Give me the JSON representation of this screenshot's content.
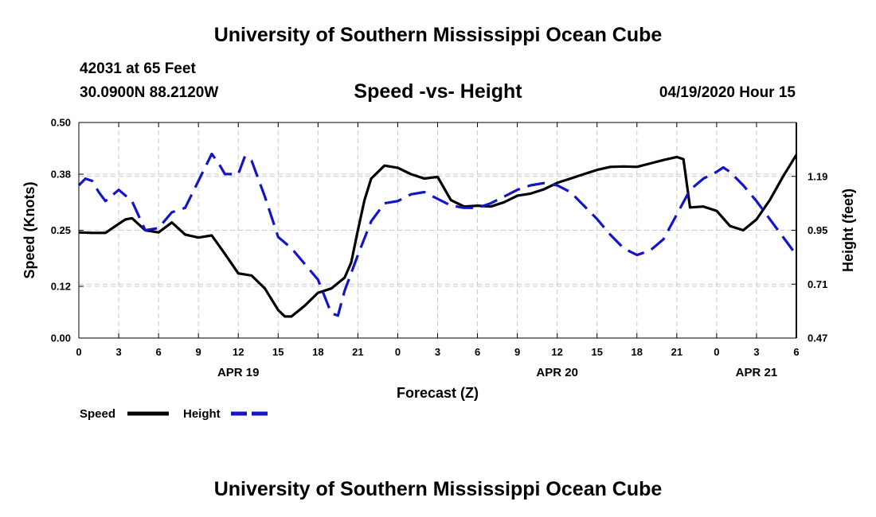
{
  "header": {
    "main_title": "University of Southern Mississippi Ocean Cube",
    "station": "42031 at 65 Feet",
    "coords": "30.0900N 88.2120W",
    "datetime": "04/19/2020 Hour 15"
  },
  "footer": {
    "title": "University of Southern Mississippi Ocean Cube"
  },
  "colors": {
    "speed": "#000000",
    "height": "#1414c8",
    "grid": "#c8c8c8"
  },
  "chart_data": {
    "type": "line",
    "title": "Speed -vs- Height",
    "xlabel": "Forecast (Z)",
    "ylabel": "Speed (Knots)",
    "y2label": "Height (feet)",
    "grid": true,
    "x_range": [
      0,
      54
    ],
    "x_ticks": [
      {
        "x": 0,
        "label": "0"
      },
      {
        "x": 3,
        "label": "3"
      },
      {
        "x": 6,
        "label": "6"
      },
      {
        "x": 9,
        "label": "9"
      },
      {
        "x": 12,
        "label": "12"
      },
      {
        "x": 15,
        "label": "15"
      },
      {
        "x": 18,
        "label": "18"
      },
      {
        "x": 21,
        "label": "21"
      },
      {
        "x": 24,
        "label": "0"
      },
      {
        "x": 27,
        "label": "3"
      },
      {
        "x": 30,
        "label": "6"
      },
      {
        "x": 33,
        "label": "9"
      },
      {
        "x": 36,
        "label": "12"
      },
      {
        "x": 39,
        "label": "15"
      },
      {
        "x": 42,
        "label": "18"
      },
      {
        "x": 45,
        "label": "21"
      },
      {
        "x": 48,
        "label": "0"
      },
      {
        "x": 51,
        "label": "3"
      },
      {
        "x": 54,
        "label": "6"
      }
    ],
    "date_labels": [
      {
        "x": 12,
        "label": "APR 19"
      },
      {
        "x": 36,
        "label": "APR 20"
      },
      {
        "x": 51,
        "label": "APR 21"
      }
    ],
    "ylim": [
      0,
      0.5
    ],
    "y_ticks": [
      "0.00",
      "0.12",
      "0.25",
      "0.38",
      "0.50"
    ],
    "y2lim": [
      0.47,
      1.43
    ],
    "y2_ticks": [
      "0.47",
      "0.71",
      "0.95",
      "1.19"
    ],
    "legend": [
      {
        "name": "Speed",
        "style": "solid"
      },
      {
        "name": "Height",
        "style": "dashed"
      }
    ],
    "series": [
      {
        "name": "Speed",
        "axis": "left",
        "x": [
          0,
          1,
          2,
          3,
          3.5,
          4,
          5,
          6,
          7,
          8,
          9,
          10,
          11,
          12,
          13,
          14,
          15,
          15.5,
          16,
          17,
          18,
          19,
          20,
          20.5,
          21,
          21.5,
          22,
          23,
          24,
          25,
          26,
          27,
          28,
          29,
          30,
          31,
          32,
          33,
          34,
          35,
          36,
          37,
          38,
          39,
          40,
          41,
          42,
          43,
          44,
          45,
          45.5,
          46,
          47,
          48,
          49,
          50,
          51,
          52,
          53,
          54
        ],
        "values": [
          0.245,
          0.244,
          0.244,
          0.265,
          0.275,
          0.278,
          0.25,
          0.245,
          0.268,
          0.24,
          0.233,
          0.238,
          0.195,
          0.15,
          0.145,
          0.115,
          0.065,
          0.05,
          0.05,
          0.075,
          0.105,
          0.115,
          0.14,
          0.175,
          0.25,
          0.32,
          0.37,
          0.4,
          0.395,
          0.38,
          0.37,
          0.374,
          0.32,
          0.305,
          0.307,
          0.305,
          0.315,
          0.33,
          0.335,
          0.345,
          0.36,
          0.37,
          0.38,
          0.39,
          0.397,
          0.398,
          0.397,
          0.405,
          0.413,
          0.42,
          0.415,
          0.303,
          0.305,
          0.295,
          0.26,
          0.25,
          0.275,
          0.32,
          0.375,
          0.425
        ]
      },
      {
        "name": "Height",
        "axis": "right",
        "x": [
          0,
          0.5,
          1,
          1.5,
          2,
          3,
          4,
          5,
          6,
          7,
          8,
          9,
          10,
          10.5,
          11,
          12,
          12.5,
          13,
          14,
          15,
          16,
          17,
          18,
          19,
          19.5,
          20,
          21,
          22,
          23,
          24,
          25,
          26,
          27,
          28,
          29,
          30,
          31,
          32,
          33,
          34,
          35,
          36,
          37,
          38,
          39,
          40,
          41,
          42,
          43,
          44,
          45,
          46,
          47,
          48,
          48.5,
          49,
          50,
          51,
          52,
          53,
          54
        ],
        "values": [
          1.15,
          1.18,
          1.17,
          1.12,
          1.08,
          1.13,
          1.08,
          0.95,
          0.96,
          1.03,
          1.05,
          1.17,
          1.29,
          1.25,
          1.2,
          1.2,
          1.28,
          1.26,
          1.1,
          0.92,
          0.87,
          0.8,
          0.73,
          0.58,
          0.57,
          0.68,
          0.84,
          0.99,
          1.07,
          1.08,
          1.11,
          1.12,
          1.09,
          1.06,
          1.05,
          1.05,
          1.07,
          1.1,
          1.13,
          1.15,
          1.16,
          1.15,
          1.12,
          1.06,
          1.0,
          0.93,
          0.87,
          0.84,
          0.86,
          0.91,
          1.02,
          1.13,
          1.18,
          1.21,
          1.23,
          1.21,
          1.15,
          1.08,
          1.0,
          0.92,
          0.84
        ]
      }
    ]
  }
}
